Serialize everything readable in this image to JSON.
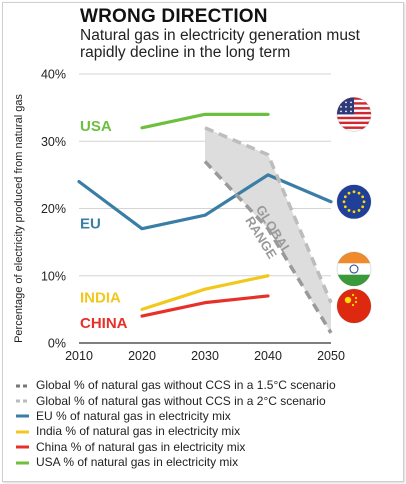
{
  "title": "WRONG DIRECTION",
  "subtitle": "Natural gas in electricity generation must rapidly decline in the long term",
  "chart_data": {
    "type": "line",
    "ylabel": "Percentage of electricity produced from natural gas",
    "xlim": [
      2010,
      2050
    ],
    "ylim": [
      0,
      40
    ],
    "x_ticks": [
      2010,
      2020,
      2030,
      2040,
      2050
    ],
    "y_ticks": [
      0,
      10,
      20,
      30,
      40
    ],
    "y_tick_labels": [
      "0%",
      "10%",
      "20%",
      "30%",
      "40%"
    ],
    "grid": true,
    "series": [
      {
        "name": "USA",
        "label": "USA",
        "color": "#6dbf3f",
        "dashed": false,
        "x": [
          2020,
          2030,
          2040
        ],
        "y": [
          32,
          34,
          34
        ]
      },
      {
        "name": "EU",
        "label": "EU",
        "color": "#3a7ea6",
        "dashed": false,
        "x": [
          2010,
          2020,
          2030,
          2040,
          2050
        ],
        "y": [
          24,
          17,
          19,
          25,
          21
        ]
      },
      {
        "name": "INDIA",
        "label": "INDIA",
        "color": "#f2c81d",
        "dashed": false,
        "x": [
          2020,
          2030,
          2040
        ],
        "y": [
          5,
          8,
          10
        ]
      },
      {
        "name": "CHINA",
        "label": "CHINA",
        "color": "#e8302a",
        "dashed": false,
        "x": [
          2020,
          2030,
          2040
        ],
        "y": [
          4,
          6,
          7
        ]
      },
      {
        "name": "1.5C",
        "color": "#9a9a9a",
        "dashed": true,
        "x": [
          2030,
          2040,
          2050
        ],
        "y": [
          27,
          17,
          1.5
        ]
      },
      {
        "name": "2C",
        "color": "#bdbdbd",
        "dashed": true,
        "x": [
          2030,
          2040,
          2050
        ],
        "y": [
          32,
          28,
          6
        ]
      }
    ],
    "band": {
      "label_lines": [
        "GLOBAL",
        "RANGE"
      ],
      "color": "#dddddd",
      "x": [
        2030,
        2040,
        2050
      ],
      "upper": [
        32,
        28,
        6
      ],
      "lower": [
        27,
        17,
        1.5
      ]
    },
    "legend": [
      {
        "text": "Global % of natural gas without CCS in a 1.5°C scenario",
        "color": "#777777",
        "dashed": true
      },
      {
        "text": "Global % of natural gas without CCS in a 2°C scenario",
        "color": "#bbbbbb",
        "dashed": true
      },
      {
        "text": "EU % of natural gas in electricity mix",
        "color": "#3a7ea6",
        "dashed": false
      },
      {
        "text": "India % of natural gas in electricity mix",
        "color": "#f2c81d",
        "dashed": false
      },
      {
        "text": "China % of natural gas in electricity mix",
        "color": "#e8302a",
        "dashed": false
      },
      {
        "text": "USA % of natural gas in electricity mix",
        "color": "#6dbf3f",
        "dashed": false
      }
    ],
    "legend_position": "bottom"
  },
  "flags": [
    {
      "icon": "usa-flag-icon",
      "value_y": 34
    },
    {
      "icon": "eu-flag-icon",
      "value_y": 21
    },
    {
      "icon": "india-flag-icon",
      "value_y": 11
    },
    {
      "icon": "china-flag-icon",
      "value_y": 5.5
    }
  ]
}
